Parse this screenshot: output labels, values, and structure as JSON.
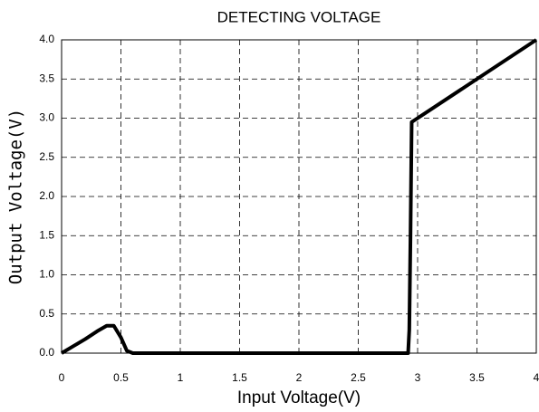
{
  "chart_data": {
    "type": "line",
    "title": "DETECTING VOLTAGE",
    "x_label": "Input Voltage(V)",
    "y_label": "Output Voltage(V)",
    "x": [
      0,
      0.1,
      0.2,
      0.3,
      0.38,
      0.44,
      0.5,
      0.55,
      0.6,
      1,
      2,
      2.92,
      2.93,
      2.94,
      2.95,
      3,
      3.5,
      4
    ],
    "values": [
      0,
      0.09,
      0.18,
      0.28,
      0.35,
      0.35,
      0.2,
      0.03,
      0,
      0,
      0,
      0,
      0.3,
      1.5,
      2.95,
      3.0,
      3.5,
      4.0
    ],
    "color": "#000000",
    "xlim": [
      0,
      4
    ],
    "xticks": [
      0,
      0.5,
      1,
      1.5,
      2,
      2.5,
      3,
      3.5,
      4
    ],
    "ylim": [
      0,
      4
    ],
    "yticks": [
      {
        "value": 0,
        "label": "0.0"
      },
      0.5,
      {
        "value": 1,
        "label": "1.0"
      },
      1.5,
      {
        "value": 2,
        "label": "2.0"
      },
      2.5,
      {
        "value": 3,
        "label": "3.0"
      },
      3.5,
      {
        "value": 4,
        "label": "4.0"
      }
    ],
    "grid": true
  }
}
